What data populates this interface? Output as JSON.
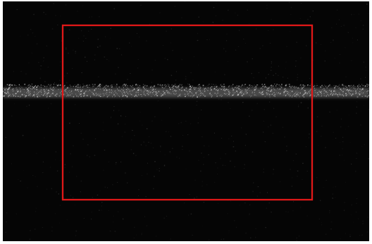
{
  "image": {
    "background_color": "#050505",
    "band_color": "#d8d8d8",
    "speckle_color": "#bdbdbd",
    "selection_box_color": "#e01818"
  }
}
